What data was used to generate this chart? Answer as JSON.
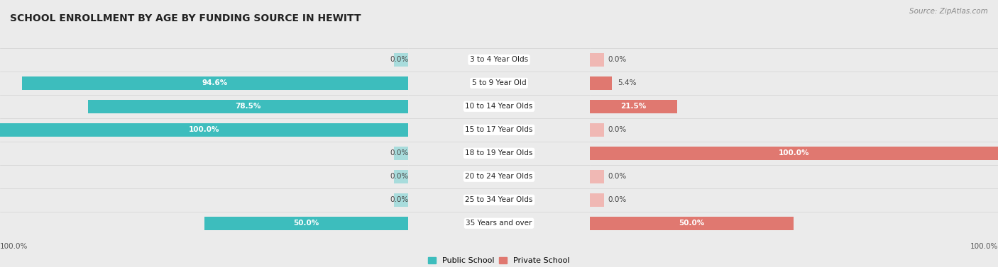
{
  "title": "SCHOOL ENROLLMENT BY AGE BY FUNDING SOURCE IN HEWITT",
  "source": "Source: ZipAtlas.com",
  "categories": [
    "3 to 4 Year Olds",
    "5 to 9 Year Old",
    "10 to 14 Year Olds",
    "15 to 17 Year Olds",
    "18 to 19 Year Olds",
    "20 to 24 Year Olds",
    "25 to 34 Year Olds",
    "35 Years and over"
  ],
  "public_values": [
    0.0,
    94.6,
    78.5,
    100.0,
    0.0,
    0.0,
    0.0,
    50.0
  ],
  "private_values": [
    0.0,
    5.4,
    21.5,
    0.0,
    100.0,
    0.0,
    0.0,
    50.0
  ],
  "public_color": "#3DBDBD",
  "private_color": "#E07870",
  "public_color_light": "#A8DCDC",
  "private_color_light": "#F0B8B4",
  "bg_color": "#ebebeb",
  "row_bg_color": "#f7f7f7",
  "row_bg_alt": "#efefef",
  "axis_label": "100.0%",
  "legend_public": "Public School",
  "legend_private": "Private School",
  "title_fontsize": 10,
  "label_fontsize": 7.5,
  "bar_height": 0.58,
  "stub_size": 3.5,
  "max_val": 100.0
}
